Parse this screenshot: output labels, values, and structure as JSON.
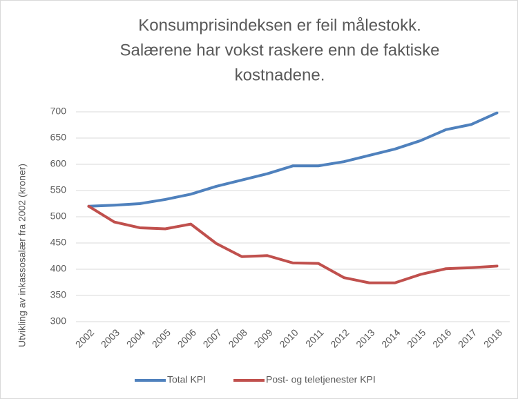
{
  "chart_data": {
    "type": "line",
    "title": [
      "Konsumprisindeksen er feil målestokk.",
      "Salærene har vokst raskere enn de faktiske",
      "kostnadene."
    ],
    "y_label": "Utvikling av inkassosalær fra 2002 (kroner)",
    "categories": [
      "2002",
      "2003",
      "2004",
      "2005",
      "2006",
      "2007",
      "2008",
      "2009",
      "2010",
      "2011",
      "2012",
      "2013",
      "2014",
      "2015",
      "2016",
      "2017",
      "2018"
    ],
    "series": [
      {
        "name": "Total KPI",
        "color": "#4f81bd",
        "values": [
          520,
          522,
          525,
          533,
          543,
          558,
          570,
          582,
          597,
          597,
          605,
          617,
          629,
          645,
          666,
          676,
          698
        ]
      },
      {
        "name": "Post- og teletjenester KPI",
        "color": "#c0504d",
        "values": [
          520,
          490,
          479,
          477,
          486,
          449,
          424,
          426,
          412,
          411,
          384,
          374,
          374,
          390,
          401,
          403,
          406
        ]
      }
    ],
    "ylim": [
      300,
      700
    ],
    "yticks": [
      300,
      350,
      400,
      450,
      500,
      550,
      600,
      650,
      700
    ],
    "grid": true,
    "legend": "bottom"
  }
}
